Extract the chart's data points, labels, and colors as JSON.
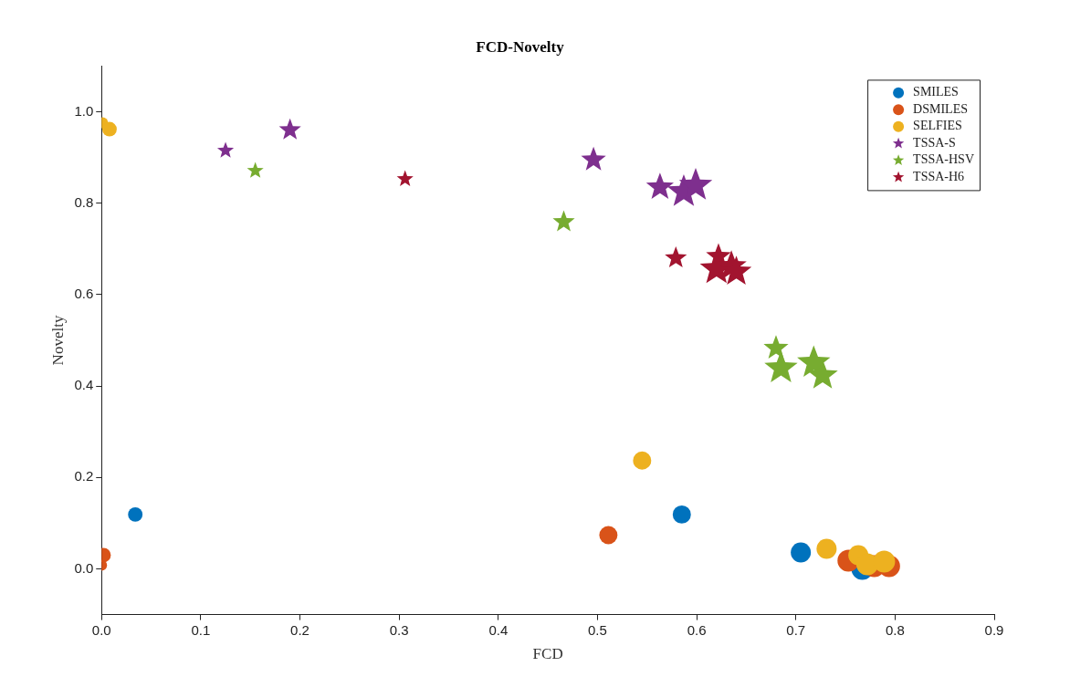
{
  "chart_data": {
    "type": "bubble",
    "title": "FCD-Novelty",
    "xlabel": "FCD",
    "ylabel": "Novelty",
    "xlim": [
      0,
      0.9
    ],
    "xticks": [
      {
        "value": 0,
        "label": "0.0"
      },
      0.1,
      0.2,
      0.3,
      0.4,
      0.5,
      0.6,
      0.7,
      0.8,
      0.9
    ],
    "ylim": [
      -0.1,
      1.1
    ],
    "yticks": [
      {
        "value": 0,
        "label": "0.0"
      },
      0.2,
      0.4,
      0.6,
      0.8,
      {
        "value": 1,
        "label": "1.0"
      }
    ],
    "grid": false,
    "legend": "top right",
    "series": [
      {
        "name": "SMILES",
        "color": "#0072bd",
        "marker": "circle",
        "x": [
          0.034,
          0.585,
          0.705,
          0.767
        ],
        "values": [
          0.119,
          0.119,
          0.036,
          0.0
        ],
        "sizes": [
          0.44,
          0.69,
          0.84,
          1
        ]
      },
      {
        "name": "DSMILES",
        "color": "#d95319",
        "marker": "circle",
        "x": [
          0.0,
          0.002,
          0.511,
          0.753,
          0.779,
          0.794
        ],
        "values": [
          0.008,
          0.03,
          0.074,
          0.018,
          0.006,
          0.006
        ],
        "sizes": [
          0.25,
          0.44,
          0.69,
          1,
          1,
          1
        ]
      },
      {
        "name": "SELFIES",
        "color": "#edb120",
        "marker": "circle",
        "x": [
          0.001,
          0.008,
          0.545,
          0.731,
          0.763,
          0.772,
          0.789
        ],
        "values": [
          0.976,
          0.962,
          0.237,
          0.044,
          0.03,
          0.01,
          0.016
        ],
        "sizes": [
          0.25,
          0.44,
          0.69,
          0.84,
          0.84,
          1,
          1
        ]
      },
      {
        "name": "TSSA-S",
        "color": "#7e2f8e",
        "marker": "star",
        "x": [
          0.125,
          0.19,
          0.496,
          0.563,
          0.587,
          0.599
        ],
        "values": [
          0.915,
          0.96,
          0.895,
          0.835,
          0.825,
          0.839
        ],
        "sizes": [
          0.25,
          0.44,
          0.56,
          0.69,
          1,
          1
        ]
      },
      {
        "name": "TSSA-HSV",
        "color": "#77ac30",
        "marker": "star",
        "x": [
          0.155,
          0.466,
          0.68,
          0.685,
          0.718,
          0.727
        ],
        "values": [
          0.871,
          0.759,
          0.483,
          0.439,
          0.451,
          0.423
        ],
        "sizes": [
          0.25,
          0.44,
          0.56,
          1,
          1,
          0.84
        ]
      },
      {
        "name": "TSSA-H6",
        "color": "#a2142f",
        "marker": "star",
        "x": [
          0.306,
          0.579,
          0.622,
          0.62,
          0.635,
          0.64
        ],
        "values": [
          0.853,
          0.68,
          0.684,
          0.656,
          0.662,
          0.65
        ],
        "sizes": [
          0.25,
          0.44,
          0.56,
          1,
          0.84,
          0.84
        ]
      }
    ]
  }
}
